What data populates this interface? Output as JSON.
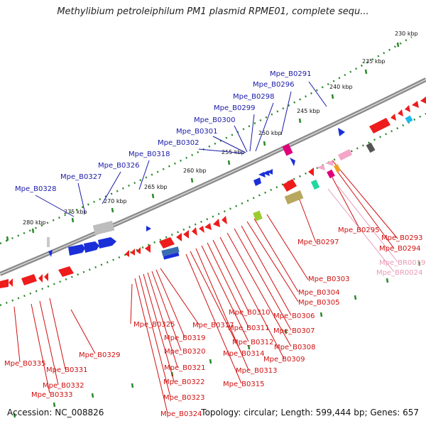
{
  "title": "Methylibium petroleiphilum PM1 plasmid RPME01, complete sequ...",
  "footer": {
    "accession": "Accession: NC_008826",
    "stats": "Topology: circular; Length: 599,444 bp; Genes: 657"
  },
  "scale_labels": [
    {
      "text": "230 kbp",
      "kbp": 230
    },
    {
      "text": "235 kbp",
      "kbp": 235
    },
    {
      "text": "240 kbp",
      "kbp": 240
    },
    {
      "text": "245 kbp",
      "kbp": 245
    },
    {
      "text": "250 kbp",
      "kbp": 250
    },
    {
      "text": "255 kbp",
      "kbp": 255
    },
    {
      "text": "260 kbp",
      "kbp": 260
    },
    {
      "text": "265 kbp",
      "kbp": 265
    },
    {
      "text": "270 kbp",
      "kbp": 270
    },
    {
      "text": "275 kbp",
      "kbp": 275
    },
    {
      "text": "280 kbp",
      "kbp": 280
    }
  ],
  "colors": {
    "forward_label": "#1a1aa8",
    "reverse_label": "#d01010",
    "rna_label": "#e89ab8",
    "backbone": "#777777",
    "tick": "#2a8a2a"
  },
  "forward_genes": [
    "Mpe_B0291",
    "Mpe_B0296",
    "Mpe_B0298",
    "Mpe_B0299",
    "Mpe_B0300",
    "Mpe_B0301",
    "Mpe_B0302",
    "Mpe_B0318",
    "Mpe_B0326",
    "Mpe_B0327",
    "Mpe_B0328"
  ],
  "reverse_genes": [
    "Mpe_B0293",
    "Mpe_B0294",
    "Mpe_B0295",
    "Mpe_B0297",
    "Mpe_B0303",
    "Mpe_B0304",
    "Mpe_B0305",
    "Mpe_B0306",
    "Mpe_B0307",
    "Mpe_B0308",
    "Mpe_B0309",
    "Mpe_B0310",
    "Mpe_B0311",
    "Mpe_B0312",
    "Mpe_B0313",
    "Mpe_B0314",
    "Mpe_B0315",
    "Mpe_B0317",
    "Mpe_B0319",
    "Mpe_B0320",
    "Mpe_B0321",
    "Mpe_B0322",
    "Mpe_B0323",
    "Mpe_B0324",
    "Mpe_B0325",
    "Mpe_B0329",
    "Mpe_B0331",
    "Mpe_B0332",
    "Mpe_B0333",
    "Mpe_B0335"
  ],
  "rna_genes": [
    "Mpe_BR0019",
    "Mpe_BR0024"
  ]
}
